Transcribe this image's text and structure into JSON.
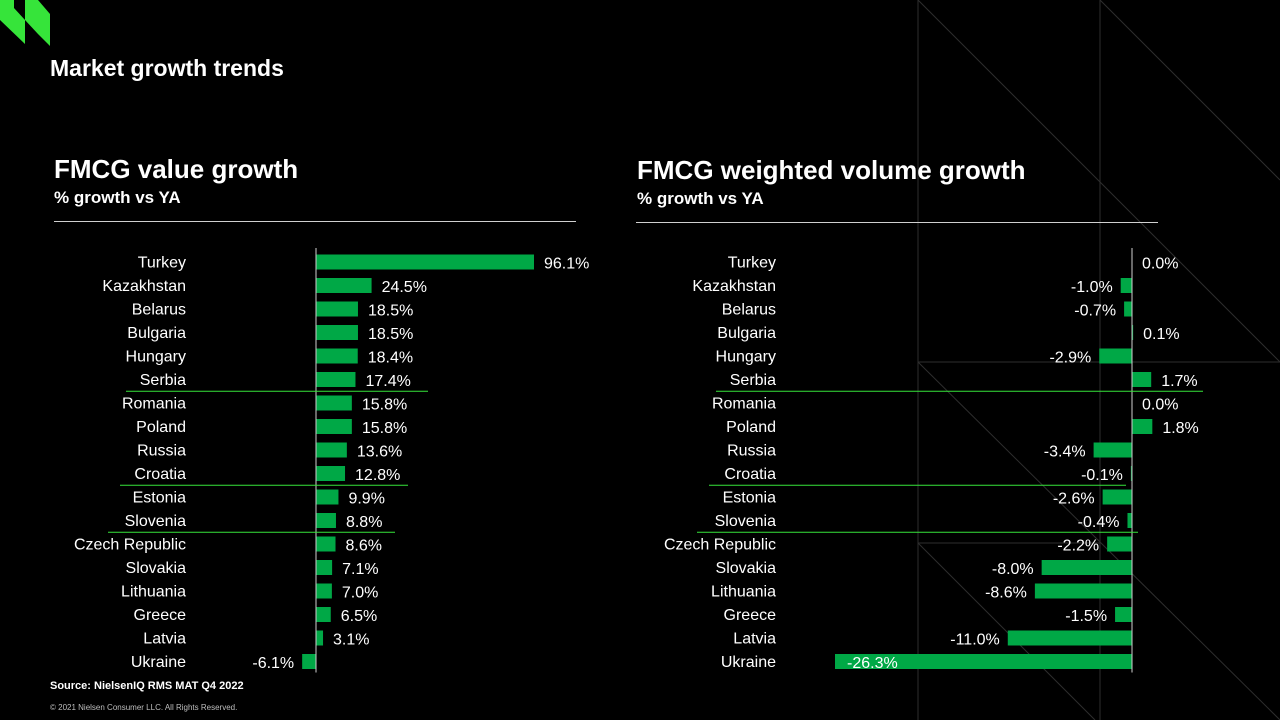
{
  "page": {
    "title": "Market growth trends"
  },
  "colors": {
    "bar": "#00a846",
    "accent": "#36e43a",
    "background": "#000000",
    "text": "#ffffff"
  },
  "icons": {
    "brand_logo": "brand-logo-icon"
  },
  "chart_data": [
    {
      "type": "bar",
      "orientation": "horizontal",
      "title": "FMCG value growth",
      "subtitle": "% growth vs YA",
      "categories": [
        "Turkey",
        "Kazakhstan",
        "Belarus",
        "Bulgaria",
        "Hungary",
        "Serbia",
        "Romania",
        "Poland",
        "Russia",
        "Croatia",
        "Estonia",
        "Slovenia",
        "Czech Republic",
        "Slovakia",
        "Lithuania",
        "Greece",
        "Latvia",
        "Ukraine"
      ],
      "values": [
        96.1,
        24.5,
        18.5,
        18.5,
        18.4,
        17.4,
        15.8,
        15.8,
        13.6,
        12.8,
        9.9,
        8.8,
        8.6,
        7.1,
        7.0,
        6.5,
        3.1,
        -6.1
      ],
      "labels": [
        "96.1%",
        "24.5%",
        "18.5%",
        "18.5%",
        "18.4%",
        "17.4%",
        "15.8%",
        "15.8%",
        "13.6%",
        "12.8%",
        "9.9%",
        "8.8%",
        "8.6%",
        "7.1%",
        "7.0%",
        "6.5%",
        "3.1%",
        "-6.1%"
      ],
      "unit": "%",
      "grid": false
    },
    {
      "type": "bar",
      "orientation": "horizontal",
      "title": "FMCG weighted volume growth",
      "subtitle": "% growth vs YA",
      "categories": [
        "Turkey",
        "Kazakhstan",
        "Belarus",
        "Bulgaria",
        "Hungary",
        "Serbia",
        "Romania",
        "Poland",
        "Russia",
        "Croatia",
        "Estonia",
        "Slovenia",
        "Czech Republic",
        "Slovakia",
        "Lithuania",
        "Greece",
        "Latvia",
        "Ukraine"
      ],
      "values": [
        0.0,
        -1.0,
        -0.7,
        0.1,
        -2.9,
        1.7,
        0.0,
        1.8,
        -3.4,
        -0.1,
        -2.6,
        -0.4,
        -2.2,
        -8.0,
        -8.6,
        -1.5,
        -11.0,
        -26.3
      ],
      "labels": [
        "0.0%",
        "-1.0%",
        "-0.7%",
        "0.1%",
        "-2.9%",
        "1.7%",
        "0.0%",
        "1.8%",
        "-3.4%",
        "-0.1%",
        "-2.6%",
        "-0.4%",
        "-2.2%",
        "-8.0%",
        "-8.6%",
        "-1.5%",
        "-11.0%",
        "-26.3%"
      ],
      "unit": "%",
      "grid": false
    }
  ],
  "footer": {
    "source": "Source: NielsenIQ RMS MAT Q4 2022",
    "copyright": "© 2021 Nielsen Consumer LLC. All Rights Reserved."
  }
}
